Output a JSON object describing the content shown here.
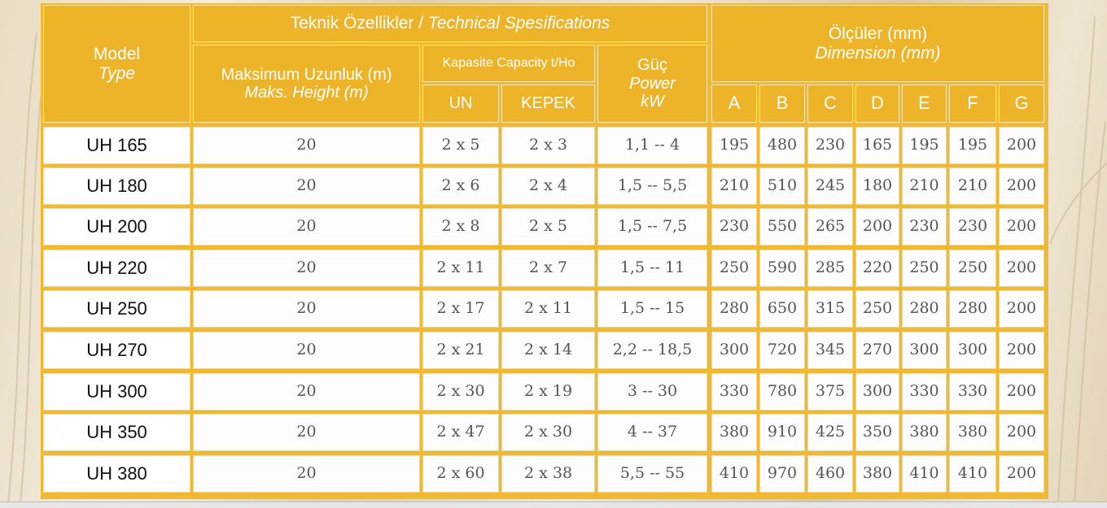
{
  "header": {
    "model": "Model",
    "model_en": "Type",
    "technical": "Teknik Özellikler / ",
    "technical_en": "Technical Spesifications",
    "max_length": "Maksimum Uzunluk (m)",
    "max_length_en": "Maks. Height (m)",
    "capacity": "Kapasite Capacity t/Ho",
    "un": "UN",
    "kepek": "KEPEK",
    "power": "Güç",
    "power_en": "Power",
    "power_unit": "kW",
    "dimensions": "Ölçüler (mm)",
    "dimensions_en": "Dimension (mm)",
    "dim_cols": [
      "A",
      "B",
      "C",
      "D",
      "E",
      "F",
      "G"
    ]
  },
  "rows": [
    {
      "model": "UH 165",
      "height": "20",
      "un": "2 x 5",
      "kepek": "2 x 3",
      "power": "1,1 -- 4",
      "dims": [
        "195",
        "480",
        "230",
        "165",
        "195",
        "195",
        "200"
      ]
    },
    {
      "model": "UH 180",
      "height": "20",
      "un": "2 x 6",
      "kepek": "2 x 4",
      "power": "1,5 -- 5,5",
      "dims": [
        "210",
        "510",
        "245",
        "180",
        "210",
        "210",
        "200"
      ]
    },
    {
      "model": "UH 200",
      "height": "20",
      "un": "2 x 8",
      "kepek": "2 x 5",
      "power": "1,5 -- 7,5",
      "dims": [
        "230",
        "550",
        "265",
        "200",
        "230",
        "230",
        "200"
      ]
    },
    {
      "model": "UH 220",
      "height": "20",
      "un": "2 x 11",
      "kepek": "2 x 7",
      "power": "1,5 -- 11",
      "dims": [
        "250",
        "590",
        "285",
        "220",
        "250",
        "250",
        "200"
      ]
    },
    {
      "model": "UH 250",
      "height": "20",
      "un": "2 x 17",
      "kepek": "2 x 11",
      "power": "1,5 -- 15",
      "dims": [
        "280",
        "650",
        "315",
        "250",
        "280",
        "280",
        "200"
      ]
    },
    {
      "model": "UH 270",
      "height": "20",
      "un": "2 x 21",
      "kepek": "2 x 14",
      "power": "2,2 -- 18,5",
      "dims": [
        "300",
        "720",
        "345",
        "270",
        "300",
        "300",
        "200"
      ]
    },
    {
      "model": "UH 300",
      "height": "20",
      "un": "2 x 30",
      "kepek": "2 x 19",
      "power": "3 -- 30",
      "dims": [
        "330",
        "780",
        "375",
        "300",
        "330",
        "330",
        "200"
      ]
    },
    {
      "model": "UH 350",
      "height": "20",
      "un": "2 x 47",
      "kepek": "2 x 30",
      "power": "4 -- 37",
      "dims": [
        "380",
        "910",
        "425",
        "350",
        "380",
        "380",
        "200"
      ]
    },
    {
      "model": "UH 380",
      "height": "20",
      "un": "2 x 60",
      "kepek": "2 x 38",
      "power": "5,5 -- 55",
      "dims": [
        "410",
        "970",
        "460",
        "380",
        "410",
        "410",
        "200"
      ]
    }
  ]
}
